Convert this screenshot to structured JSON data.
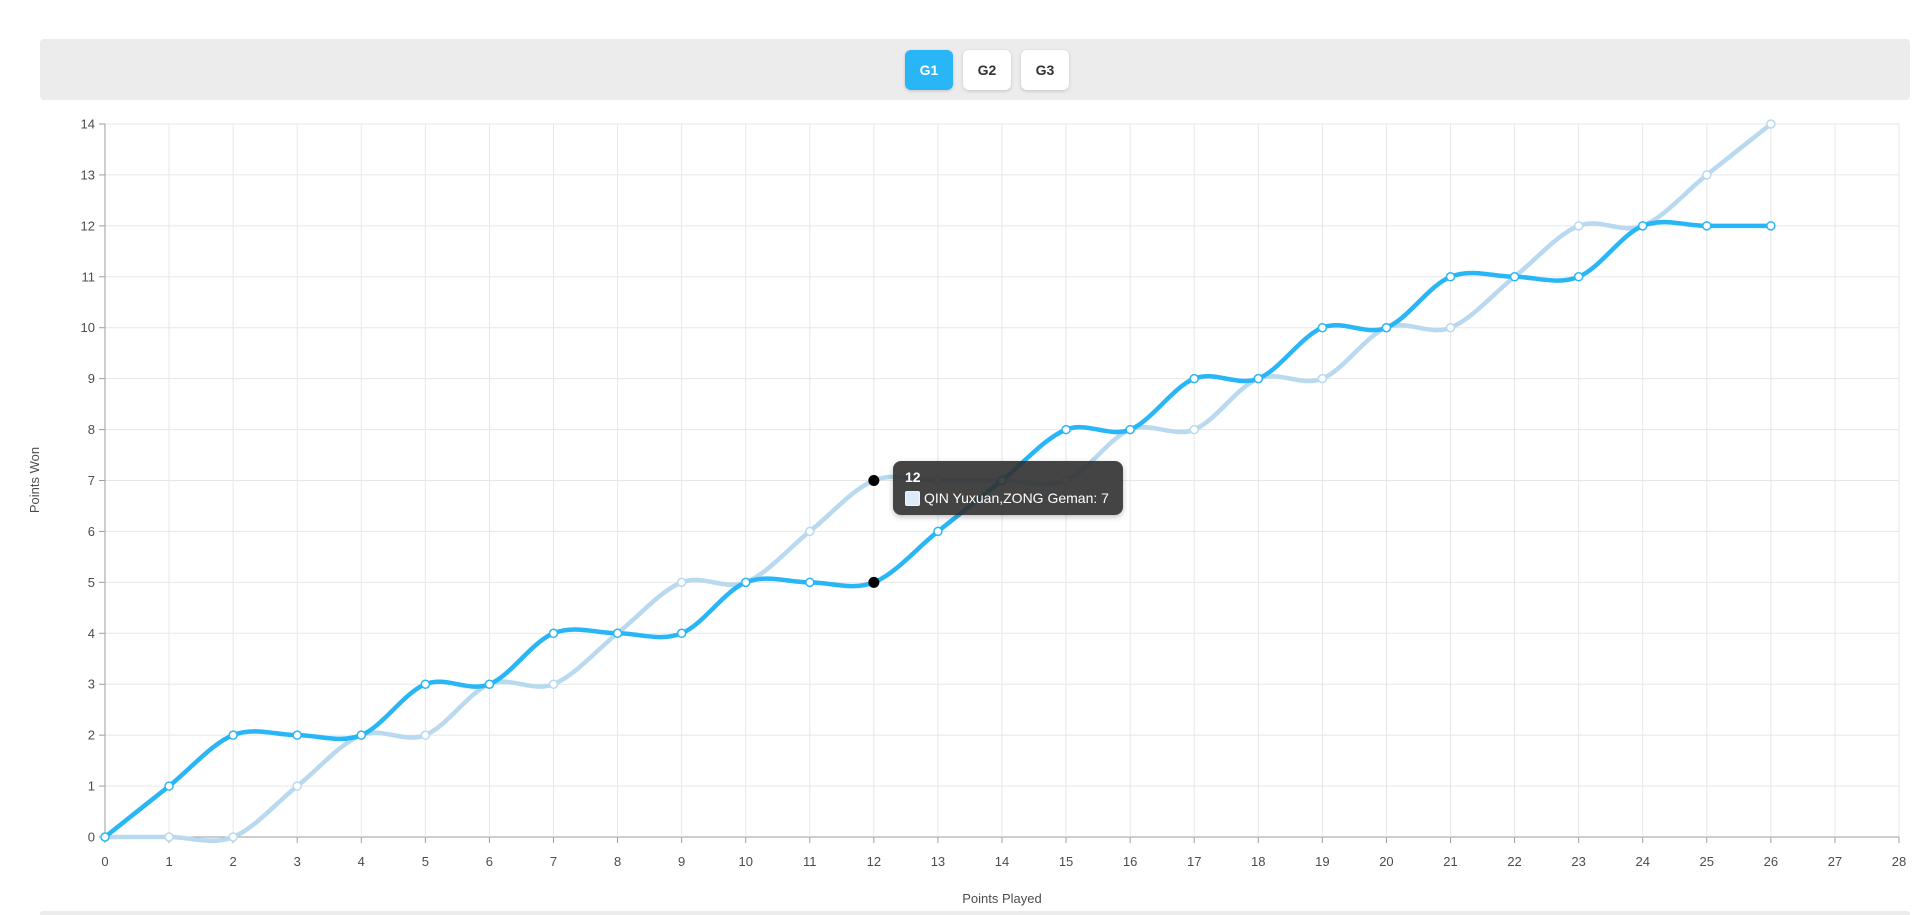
{
  "header": {
    "tabs": [
      {
        "label": "G1",
        "active": true
      },
      {
        "label": "G2",
        "active": false
      },
      {
        "label": "G3",
        "active": false
      }
    ],
    "active_tab_color": "#29b6f6",
    "inactive_tab_color": "#ffffff"
  },
  "tooltip": {
    "title": "12",
    "series": "QIN Yuxuan,ZONG Geman",
    "value": 7,
    "text": "QIN Yuxuan,ZONG Geman: 7",
    "swatch_color": "#dcebf7"
  },
  "chart_data": {
    "type": "line",
    "title": "",
    "xlabel": "Points Played",
    "ylabel": "Points Won",
    "xlim": [
      0,
      28
    ],
    "ylim": [
      0,
      14
    ],
    "x_ticks": [
      0,
      1,
      2,
      3,
      4,
      5,
      6,
      7,
      8,
      9,
      10,
      11,
      12,
      13,
      14,
      15,
      16,
      17,
      18,
      19,
      20,
      21,
      22,
      23,
      24,
      25,
      26,
      27,
      28
    ],
    "y_ticks": [
      0,
      1,
      2,
      3,
      4,
      5,
      6,
      7,
      8,
      9,
      10,
      11,
      12,
      13,
      14
    ],
    "grid": true,
    "x": [
      0,
      1,
      2,
      3,
      4,
      5,
      6,
      7,
      8,
      9,
      10,
      11,
      12,
      13,
      14,
      15,
      16,
      17,
      18,
      19,
      20,
      21,
      22,
      23,
      24,
      25,
      26
    ],
    "series": [
      {
        "name": "",
        "color": "#29b6f6",
        "values": [
          0,
          1,
          2,
          2,
          2,
          3,
          3,
          4,
          4,
          4,
          5,
          5,
          5,
          6,
          7,
          8,
          8,
          9,
          9,
          10,
          10,
          11,
          11,
          11,
          12,
          12,
          12
        ]
      },
      {
        "name": "QIN Yuxuan,ZONG Geman",
        "color": "#b8d9ef",
        "values": [
          0,
          0,
          0,
          1,
          2,
          2,
          3,
          3,
          4,
          5,
          5,
          6,
          7,
          7,
          7,
          7,
          8,
          8,
          9,
          9,
          10,
          10,
          11,
          12,
          12,
          13,
          14
        ]
      }
    ],
    "highlight": {
      "x": 12,
      "points": [
        {
          "series_index": 0,
          "y": 5
        },
        {
          "series_index": 1,
          "y": 7
        }
      ],
      "dot_color": "#000000"
    },
    "grid_color": "#e7e7e7",
    "axis_color": "#9e9e9e",
    "tick_label_color": "#4d4d4d"
  }
}
